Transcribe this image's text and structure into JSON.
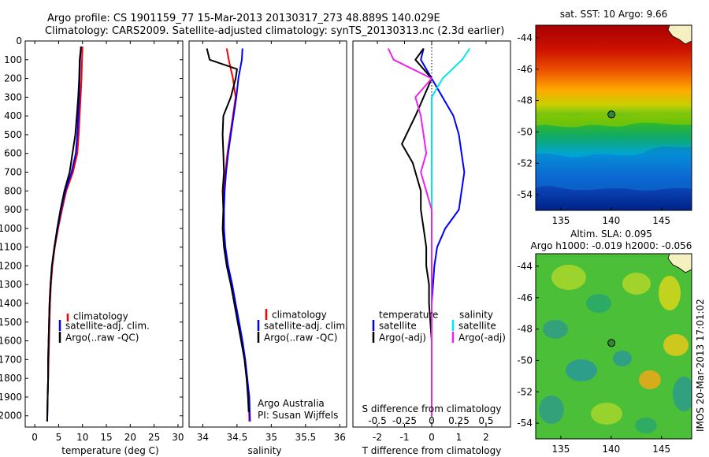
{
  "header": {
    "line1": "Argo profile: CS 1901159_77 15-Mar-2013 20130317_273 48.889S 140.029E",
    "line2": "Climatology: CARS2009. Satellite-adjusted climatology: synTS_20130313.nc (2.3d earlier)"
  },
  "depth_ticks": [
    "0",
    "100",
    "200",
    "300",
    "400",
    "500",
    "600",
    "700",
    "800",
    "900",
    "1000",
    "1100",
    "1200",
    "1300",
    "1400",
    "1500",
    "1600",
    "1700",
    "1800",
    "1900",
    "2000"
  ],
  "colors": {
    "climatology": "#ff0000",
    "satellite": "#0000ff",
    "argo": "#000000",
    "satellite_salinity": "#00e5ee",
    "argo_salinity": "#ee22ee"
  },
  "panels": {
    "temperature": {
      "xlabel": "temperature (deg C)",
      "xticks": [
        "0",
        "5",
        "10",
        "15",
        "20",
        "25",
        "30"
      ],
      "legend": [
        "climatology",
        "satellite-adj. clim.",
        "Argo(..raw -QC)"
      ]
    },
    "salinity": {
      "xlabel": "salinity",
      "xticks": [
        "34",
        "34.5",
        "35",
        "35.5",
        "36"
      ],
      "legend": [
        "climatology",
        "satellite-adj. clim.",
        "Argo(..raw -QC)"
      ],
      "note1": "Argo Australia",
      "note2": "PI: Susan Wijffels"
    },
    "difference": {
      "xlabel": "T difference from climatology",
      "top_label": "S difference from climatology",
      "xticks_T": [
        "-2",
        "-1",
        "0",
        "1",
        "2"
      ],
      "xticks_S": [
        "-0.5",
        "-0.25",
        "0",
        "0.25",
        "0.5"
      ],
      "legend_temp_title": "temperature",
      "legend_sal_title": "salinity",
      "legend_temp": [
        "satellite",
        "Argo(-adj)"
      ],
      "legend_sal": [
        "satellite",
        "Argo(-adj)"
      ]
    }
  },
  "maps": {
    "sst": {
      "title": "sat. SST: 10 Argo: 9.66",
      "yticks": [
        "-44",
        "-46",
        "-48",
        "-50",
        "-52",
        "-54"
      ],
      "xticks": [
        "135",
        "140",
        "145"
      ]
    },
    "sla": {
      "title1": "Altim. SLA: 0.095",
      "title2": "Argo h1000: -0.019 h2000: -0.056",
      "yticks": [
        "-44",
        "-46",
        "-48",
        "-50",
        "-52",
        "-54"
      ],
      "xticks": [
        "135",
        "140",
        "145"
      ]
    },
    "footer": "IMOS 20-Mar-2013 17:01:02"
  },
  "chart_data": [
    {
      "type": "line",
      "name": "temperature profile",
      "xlabel": "temperature (deg C)",
      "ylabel": "",
      "xlim": [
        -2,
        31
      ],
      "ylim": [
        2060,
        0
      ],
      "series": [
        {
          "name": "climatology",
          "points": [
            [
              10,
              30
            ],
            [
              9.9,
              100
            ],
            [
              9.8,
              200
            ],
            [
              9.6,
              300
            ],
            [
              9.4,
              400
            ],
            [
              9.2,
              500
            ],
            [
              8.9,
              600
            ],
            [
              8,
              700
            ],
            [
              6.6,
              800
            ],
            [
              5.7,
              900
            ],
            [
              4.9,
              1000
            ],
            [
              4.2,
              1100
            ],
            [
              3.7,
              1200
            ],
            [
              3.4,
              1300
            ],
            [
              3.2,
              1400
            ],
            [
              3.1,
              1500
            ],
            [
              3,
              1600
            ],
            [
              2.9,
              1700
            ],
            [
              2.8,
              1800
            ],
            [
              2.7,
              1900
            ],
            [
              2.6,
              2030
            ]
          ]
        },
        {
          "name": "satellite-adj. clim.",
          "points": [
            [
              9.7,
              30
            ],
            [
              9.5,
              100
            ],
            [
              9.4,
              200
            ],
            [
              9.3,
              300
            ],
            [
              9.1,
              400
            ],
            [
              8.9,
              500
            ],
            [
              8.6,
              600
            ],
            [
              7.7,
              700
            ],
            [
              6.4,
              800
            ],
            [
              5.5,
              900
            ],
            [
              4.8,
              1000
            ],
            [
              4.1,
              1100
            ],
            [
              3.6,
              1200
            ],
            [
              3.3,
              1300
            ],
            [
              3.1,
              1400
            ],
            [
              3,
              1500
            ],
            [
              2.9,
              1600
            ],
            [
              2.8,
              1700
            ],
            [
              2.8,
              1800
            ],
            [
              2.7,
              1900
            ],
            [
              2.6,
              2030
            ]
          ]
        },
        {
          "name": "Argo(..raw -QC)",
          "points": [
            [
              9.7,
              30
            ],
            [
              9.4,
              100
            ],
            [
              9.3,
              200
            ],
            [
              9.1,
              300
            ],
            [
              8.8,
              400
            ],
            [
              8.5,
              500
            ],
            [
              7.9,
              600
            ],
            [
              7.3,
              700
            ],
            [
              6.2,
              800
            ],
            [
              5.4,
              900
            ],
            [
              4.7,
              1000
            ],
            [
              4.1,
              1100
            ],
            [
              3.6,
              1200
            ],
            [
              3.3,
              1300
            ],
            [
              3.1,
              1400
            ],
            [
              3,
              1500
            ],
            [
              2.9,
              1600
            ],
            [
              2.8,
              1700
            ],
            [
              2.8,
              1800
            ],
            [
              2.7,
              1900
            ],
            [
              2.6,
              2030
            ]
          ]
        }
      ]
    },
    {
      "type": "line",
      "name": "salinity profile",
      "xlabel": "salinity",
      "ylabel": "",
      "xlim": [
        33.8,
        36.1
      ],
      "ylim": [
        2060,
        0
      ],
      "series": [
        {
          "name": "climatology",
          "points": [
            [
              34.35,
              40
            ],
            [
              34.38,
              100
            ],
            [
              34.44,
              200
            ],
            [
              34.48,
              300
            ],
            [
              34.44,
              400
            ],
            [
              34.4,
              500
            ],
            [
              34.36,
              600
            ],
            [
              34.33,
              700
            ],
            [
              34.31,
              800
            ],
            [
              34.3,
              900
            ],
            [
              34.3,
              1000
            ],
            [
              34.32,
              1100
            ],
            [
              34.36,
              1200
            ],
            [
              34.42,
              1300
            ],
            [
              34.47,
              1400
            ],
            [
              34.52,
              1500
            ],
            [
              34.57,
              1600
            ],
            [
              34.61,
              1700
            ],
            [
              34.64,
              1800
            ],
            [
              34.67,
              1900
            ],
            [
              34.68,
              2030
            ]
          ]
        },
        {
          "name": "satellite-adj. clim.",
          "points": [
            [
              34.58,
              40
            ],
            [
              34.57,
              100
            ],
            [
              34.52,
              200
            ],
            [
              34.49,
              300
            ],
            [
              34.45,
              400
            ],
            [
              34.41,
              500
            ],
            [
              34.37,
              600
            ],
            [
              34.34,
              700
            ],
            [
              34.32,
              800
            ],
            [
              34.31,
              900
            ],
            [
              34.31,
              1000
            ],
            [
              34.33,
              1100
            ],
            [
              34.37,
              1200
            ],
            [
              34.43,
              1300
            ],
            [
              34.48,
              1400
            ],
            [
              34.53,
              1500
            ],
            [
              34.58,
              1600
            ],
            [
              34.62,
              1700
            ],
            [
              34.65,
              1800
            ],
            [
              34.68,
              1900
            ],
            [
              34.69,
              2030
            ]
          ]
        },
        {
          "name": "Argo(..raw -QC)",
          "points": [
            [
              34.06,
              40
            ],
            [
              34.1,
              100
            ],
            [
              34.5,
              150
            ],
            [
              34.48,
              200
            ],
            [
              34.41,
              300
            ],
            [
              34.3,
              400
            ],
            [
              34.29,
              500
            ],
            [
              34.3,
              600
            ],
            [
              34.31,
              700
            ],
            [
              34.29,
              800
            ],
            [
              34.3,
              900
            ],
            [
              34.29,
              1000
            ],
            [
              34.31,
              1100
            ],
            [
              34.35,
              1200
            ],
            [
              34.41,
              1300
            ],
            [
              34.46,
              1400
            ],
            [
              34.51,
              1500
            ],
            [
              34.56,
              1600
            ],
            [
              34.61,
              1700
            ],
            [
              34.64,
              1800
            ],
            [
              34.66,
              1900
            ],
            [
              34.67,
              1980
            ]
          ]
        }
      ]
    },
    {
      "type": "line",
      "name": "difference from climatology",
      "xlabel": "T difference from climatology",
      "top_axis_label": "S difference from climatology",
      "ylabel": "",
      "xlim": [
        -2.9,
        2.9
      ],
      "ylim": [
        2060,
        0
      ],
      "series": [
        {
          "name": "temperature satellite",
          "points": [
            [
              -0.3,
              40
            ],
            [
              -0.4,
              100
            ],
            [
              0,
              200
            ],
            [
              0.4,
              300
            ],
            [
              0.8,
              400
            ],
            [
              1,
              500
            ],
            [
              1.1,
              600
            ],
            [
              1.2,
              700
            ],
            [
              1.1,
              800
            ],
            [
              1,
              900
            ],
            [
              0.5,
              1000
            ],
            [
              0.2,
              1100
            ],
            [
              0.1,
              1200
            ],
            [
              0.05,
              1300
            ],
            [
              0,
              1400
            ],
            [
              0,
              1600
            ],
            [
              0,
              2000
            ]
          ]
        },
        {
          "name": "temperature Argo(-adj)",
          "points": [
            [
              -0.3,
              40
            ],
            [
              -0.6,
              100
            ],
            [
              0,
              200
            ],
            [
              -0.3,
              300
            ],
            [
              -0.6,
              400
            ],
            [
              -1.1,
              550
            ],
            [
              -0.7,
              650
            ],
            [
              -0.4,
              800
            ],
            [
              -0.4,
              900
            ],
            [
              -0.3,
              1000
            ],
            [
              -0.2,
              1100
            ],
            [
              -0.2,
              1200
            ],
            [
              -0.1,
              1300
            ],
            [
              -0.1,
              1400
            ],
            [
              0,
              1600
            ],
            [
              0,
              2000
            ]
          ]
        },
        {
          "name": "salinity satellite",
          "points": [
            [
              0.35,
              40
            ],
            [
              0.28,
              100
            ],
            [
              0.1,
              200
            ],
            [
              0,
              300
            ],
            [
              0,
              500
            ],
            [
              0,
              1000
            ],
            [
              0,
              2000
            ]
          ]
        },
        {
          "name": "salinity Argo(-adj)",
          "points": [
            [
              -0.4,
              40
            ],
            [
              -0.35,
              100
            ],
            [
              0,
              200
            ],
            [
              -0.15,
              300
            ],
            [
              -0.1,
              400
            ],
            [
              -0.05,
              600
            ],
            [
              -0.1,
              700
            ],
            [
              -0.05,
              800
            ],
            [
              0,
              900
            ],
            [
              0,
              1000
            ],
            [
              0,
              2000
            ]
          ]
        }
      ]
    },
    {
      "type": "heatmap",
      "name": "sat. SST",
      "title": "sat. SST: 10 Argo: 9.66",
      "xlim": [
        132.5,
        148
      ],
      "ylim": [
        -55,
        -43.2
      ],
      "argo_position": [
        140.029,
        -48.889
      ]
    },
    {
      "type": "heatmap",
      "name": "Altim. SLA",
      "title": "Altim. SLA: 0.095",
      "xlim": [
        132.5,
        148
      ],
      "ylim": [
        -55,
        -43.2
      ],
      "argo_position": [
        140.029,
        -48.889
      ]
    }
  ]
}
